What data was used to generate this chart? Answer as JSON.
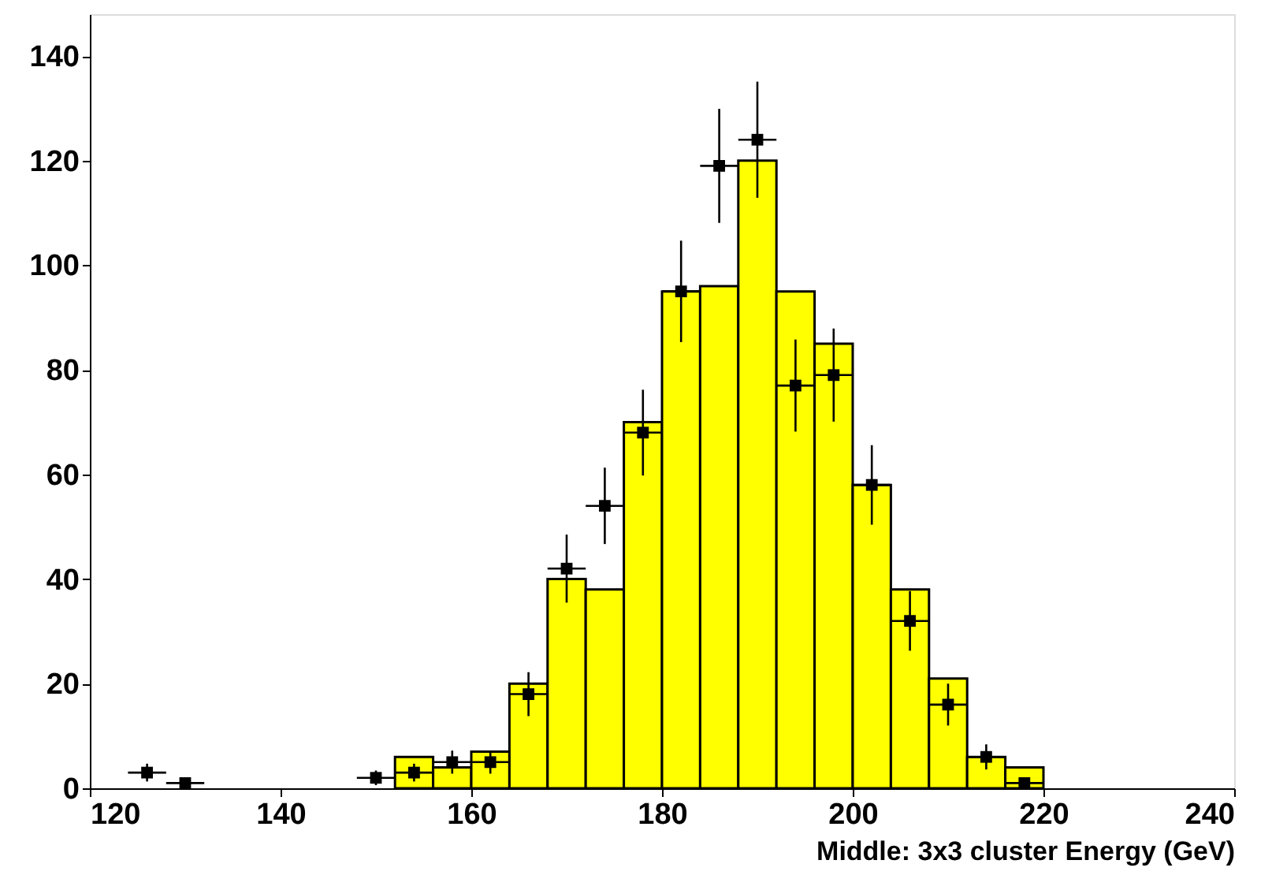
{
  "chart_data": {
    "type": "histogram",
    "xlabel": "Middle: 3x3 cluster Energy (GeV)",
    "xlim": [
      120,
      240
    ],
    "xticks": [
      120,
      140,
      160,
      180,
      200,
      220,
      240
    ],
    "ylim": [
      0,
      148
    ],
    "yticks": [
      0,
      20,
      40,
      60,
      80,
      100,
      120,
      140
    ],
    "grid": false,
    "series": [
      {
        "type": "histogram",
        "color": "#ffff00",
        "bins": [
          152,
          156,
          160,
          164,
          168,
          172,
          176,
          180,
          184,
          188,
          192,
          196,
          200,
          204,
          208,
          212,
          216,
          220
        ],
        "values": [
          6,
          4,
          7,
          20,
          40,
          38,
          70,
          95,
          96,
          120,
          95,
          85,
          58,
          38,
          21,
          6,
          4
        ]
      },
      {
        "type": "scatter",
        "color": "#000000",
        "marker": "square",
        "x": [
          126,
          130,
          150,
          154,
          158,
          162,
          166,
          170,
          174,
          178,
          182,
          186,
          190,
          194,
          198,
          202,
          206,
          210,
          214,
          218
        ],
        "values": [
          3,
          1,
          2,
          3,
          5,
          5,
          18,
          42,
          54,
          68,
          95,
          119,
          124,
          77,
          79,
          58,
          32,
          16,
          6,
          1
        ],
        "errors": [
          1.7,
          1,
          1.4,
          1.7,
          2.2,
          2.2,
          4.2,
          6.5,
          7.3,
          8.2,
          9.7,
          10.9,
          11.1,
          8.8,
          8.9,
          7.6,
          5.7,
          4,
          2.4,
          1
        ],
        "xerrors": [
          2,
          2,
          2,
          2,
          2,
          2,
          2,
          2,
          2,
          2,
          2,
          2,
          2,
          2,
          2,
          2,
          2,
          2,
          2,
          2
        ]
      }
    ]
  }
}
